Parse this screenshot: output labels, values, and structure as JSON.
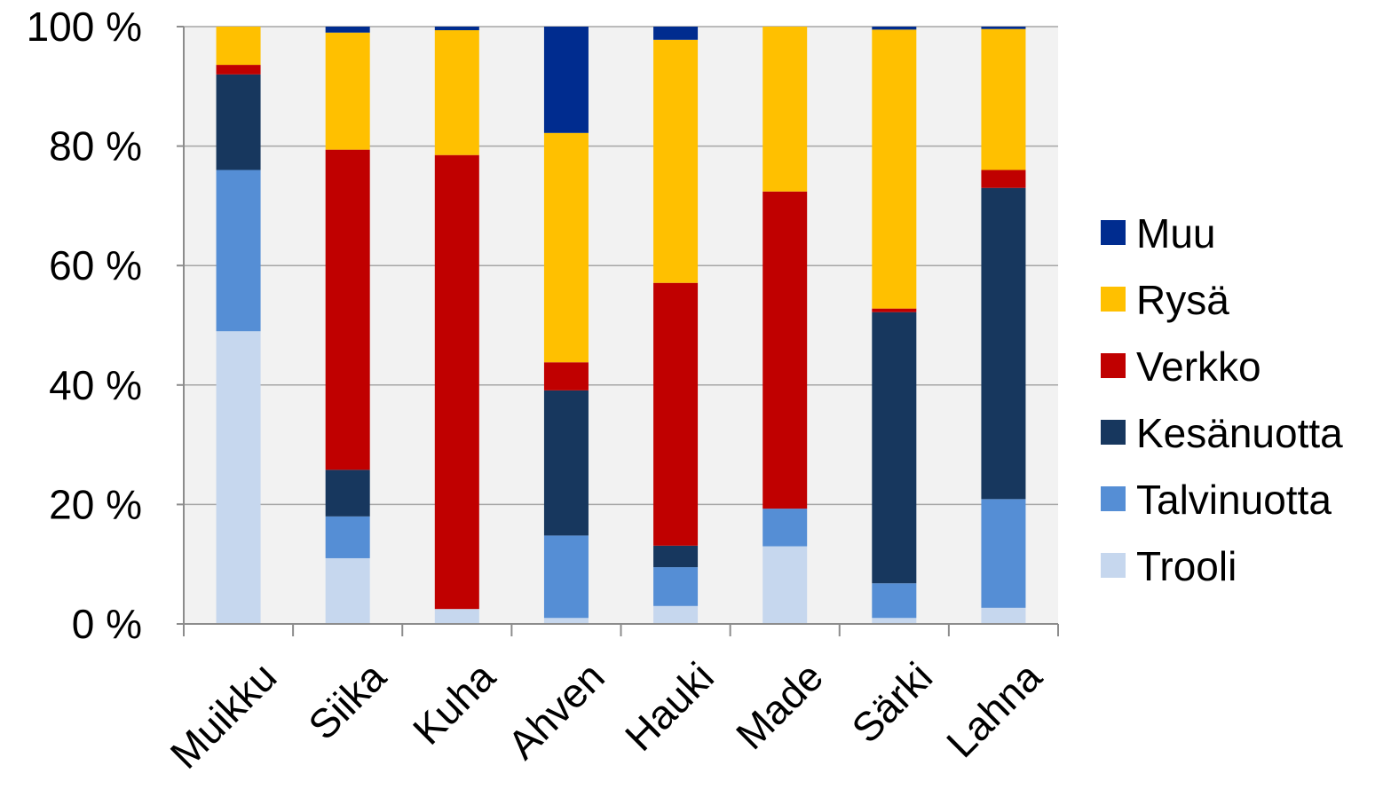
{
  "chart_data": {
    "type": "bar",
    "stacked": true,
    "percent_stacked": true,
    "categories": [
      "Muikku",
      "Siika",
      "Kuha",
      "Ahven",
      "Hauki",
      "Made",
      "Särki",
      "Lahna"
    ],
    "series": [
      {
        "name": "Trooli",
        "color": "#c6d7ee",
        "values": [
          49,
          11,
          2.5,
          1,
          3,
          13,
          1,
          2.7
        ]
      },
      {
        "name": "Talvinuotta",
        "color": "#558ed5",
        "values": [
          27,
          7,
          0,
          13.8,
          6.5,
          6.3,
          5.8,
          18.2
        ]
      },
      {
        "name": "Kesänuotta",
        "color": "#17375e",
        "values": [
          16,
          7.8,
          0,
          24.3,
          3.6,
          0,
          45.4,
          52.1
        ]
      },
      {
        "name": "Verkko",
        "color": "#c00000",
        "values": [
          1.6,
          53.6,
          76,
          4.7,
          44,
          53.1,
          0.6,
          3
        ]
      },
      {
        "name": "Rysä",
        "color": "#ffc000",
        "values": [
          6.4,
          19.6,
          20.9,
          38.4,
          40.7,
          27.6,
          46.7,
          23.6
        ]
      },
      {
        "name": "Muu",
        "color": "#002c8f",
        "values": [
          0,
          1,
          0.6,
          17.8,
          2.2,
          0,
          0.5,
          0.4
        ]
      }
    ],
    "yticks": [
      "0 %",
      "20 %",
      "40 %",
      "60 %",
      "80 %",
      "100 %"
    ],
    "ylim": [
      0,
      100
    ],
    "legend_order": [
      "Muu",
      "Rysä",
      "Verkko",
      "Kesänuotta",
      "Talvinuotta",
      "Trooli"
    ],
    "legend_position": "right",
    "grid": true,
    "title": "",
    "xlabel": "",
    "ylabel": ""
  },
  "colors": {
    "plot_background": "#f2f2f2",
    "gridline": "#a6a6a6",
    "axis": "#8c8c8c"
  }
}
